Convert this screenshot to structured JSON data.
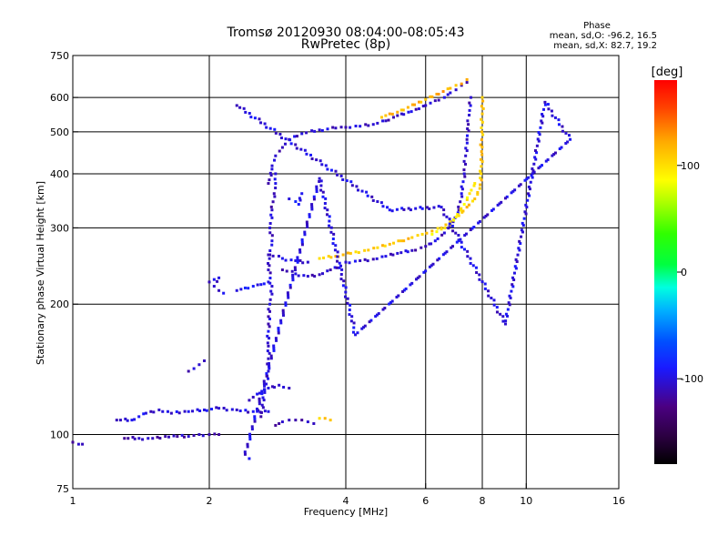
{
  "chart_data": {
    "type": "scatter",
    "title": "Tromsø 20120930 08:04:00-08:05:43",
    "subtitle": "RwPretec (8p)",
    "xlabel": "Frequency [MHz]",
    "ylabel": "Stationary phase Virtual Height [km]",
    "xscale": "log",
    "yscale": "log",
    "xlim": [
      1,
      16
    ],
    "ylim": [
      75,
      750
    ],
    "grid": true,
    "x_ticks": [
      "1",
      "2",
      "4",
      "6",
      "8",
      "10",
      "16"
    ],
    "x_tick_values": [
      1,
      2,
      4,
      6,
      8,
      10,
      16
    ],
    "y_ticks": [
      "75",
      "100",
      "200",
      "300",
      "400",
      "500",
      "600",
      "750"
    ],
    "y_tick_values": [
      75,
      100,
      200,
      300,
      400,
      500,
      600,
      750
    ],
    "grid_x": [
      2,
      4,
      6,
      8,
      10
    ],
    "grid_y": [
      100,
      200,
      300,
      400,
      500,
      600
    ],
    "phase_stats": {
      "title": "Phase",
      "line_o": "mean, sd,O: -96.2, 16.5",
      "line_x": "mean, sd,X: 82.7, 19.2"
    },
    "colorbar": {
      "label": "[deg]",
      "range": [
        -180,
        180
      ],
      "ticks": [
        "100",
        "0",
        "-100"
      ],
      "tick_values": [
        100,
        0,
        -100
      ]
    },
    "traces": [
      {
        "points": [
          [
            1.0,
            96
          ],
          [
            1.03,
            95
          ],
          [
            1.05,
            95
          ]
        ],
        "phase": -110
      },
      {
        "points": [
          [
            1.3,
            98
          ],
          [
            1.4,
            98
          ],
          [
            1.5,
            98
          ],
          [
            1.6,
            99
          ],
          [
            1.7,
            99
          ],
          [
            1.8,
            99
          ],
          [
            1.9,
            100
          ],
          [
            2.0,
            100
          ],
          [
            2.1,
            100
          ]
        ],
        "phase": -110
      },
      {
        "points": [
          [
            1.25,
            108
          ],
          [
            1.35,
            108
          ],
          [
            1.45,
            112
          ],
          [
            1.55,
            114
          ],
          [
            1.65,
            112
          ],
          [
            1.8,
            113
          ],
          [
            1.95,
            114
          ],
          [
            2.1,
            115
          ],
          [
            2.3,
            114
          ],
          [
            2.5,
            113
          ],
          [
            2.7,
            113
          ]
        ],
        "phase": -100
      },
      {
        "points": [
          [
            1.8,
            140
          ],
          [
            1.85,
            142
          ],
          [
            1.9,
            145
          ],
          [
            1.95,
            148
          ]
        ],
        "phase": -105
      },
      {
        "points": [
          [
            2.0,
            225
          ],
          [
            2.05,
            228
          ],
          [
            2.1,
            230
          ],
          [
            2.05,
            220
          ],
          [
            2.1,
            215
          ],
          [
            2.15,
            212
          ]
        ],
        "phase": -100
      },
      {
        "points": [
          [
            2.3,
            215
          ],
          [
            2.4,
            218
          ],
          [
            2.5,
            220
          ],
          [
            2.6,
            222
          ],
          [
            2.7,
            225
          ]
        ],
        "phase": -90
      },
      {
        "points": [
          [
            2.6,
            110
          ],
          [
            2.65,
            125
          ],
          [
            2.7,
            140
          ],
          [
            2.7,
            160
          ],
          [
            2.7,
            180
          ],
          [
            2.72,
            200
          ],
          [
            2.75,
            220
          ],
          [
            2.7,
            240
          ],
          [
            2.72,
            260
          ],
          [
            2.75,
            280
          ],
          [
            2.72,
            300
          ],
          [
            2.75,
            330
          ],
          [
            2.78,
            360
          ],
          [
            2.8,
            380
          ],
          [
            2.8,
            400
          ]
        ],
        "phase": -105
      },
      {
        "points": [
          [
            2.45,
            120
          ],
          [
            2.55,
            124
          ],
          [
            2.7,
            128
          ],
          [
            2.85,
            130
          ],
          [
            3.0,
            128
          ]
        ],
        "phase": -100
      },
      {
        "points": [
          [
            2.8,
            105
          ],
          [
            2.9,
            107
          ],
          [
            3.0,
            108
          ],
          [
            3.1,
            108
          ],
          [
            3.2,
            108
          ],
          [
            3.3,
            107
          ],
          [
            3.4,
            106
          ]
        ],
        "phase": -110
      },
      {
        "points": [
          [
            3.5,
            109
          ],
          [
            3.6,
            109
          ],
          [
            3.7,
            108
          ]
        ],
        "phase": 110
      },
      {
        "points": [
          [
            2.7,
            260
          ],
          [
            2.9,
            255
          ],
          [
            3.1,
            252
          ],
          [
            3.3,
            250
          ]
        ],
        "phase": -100
      },
      {
        "points": [
          [
            3.0,
            350
          ],
          [
            3.1,
            345
          ],
          [
            3.15,
            340
          ],
          [
            3.2,
            360
          ]
        ],
        "phase": -90
      },
      {
        "points": [
          [
            2.9,
            240
          ],
          [
            3.1,
            235
          ],
          [
            3.3,
            232
          ],
          [
            3.5,
            234
          ],
          [
            3.7,
            240
          ],
          [
            3.9,
            245
          ],
          [
            4.0,
            250
          ],
          [
            4.3,
            252
          ],
          [
            4.6,
            254
          ],
          [
            4.9,
            258
          ],
          [
            5.2,
            262
          ],
          [
            5.6,
            266
          ],
          [
            6.0,
            272
          ],
          [
            6.3,
            280
          ],
          [
            6.6,
            292
          ],
          [
            6.9,
            310
          ],
          [
            7.1,
            330
          ],
          [
            7.2,
            360
          ],
          [
            7.3,
            400
          ],
          [
            7.35,
            440
          ],
          [
            7.4,
            480
          ],
          [
            7.45,
            520
          ],
          [
            7.5,
            560
          ],
          [
            7.55,
            600
          ]
        ],
        "phase": -105
      },
      {
        "points": [
          [
            3.5,
            255
          ],
          [
            3.8,
            258
          ],
          [
            4.1,
            262
          ],
          [
            4.4,
            266
          ],
          [
            4.7,
            270
          ],
          [
            5.0,
            275
          ],
          [
            5.3,
            280
          ],
          [
            5.6,
            285
          ],
          [
            5.9,
            290
          ],
          [
            6.2,
            295
          ],
          [
            6.5,
            300
          ],
          [
            6.8,
            310
          ],
          [
            7.1,
            320
          ],
          [
            7.4,
            335
          ],
          [
            7.7,
            350
          ],
          [
            7.9,
            370
          ],
          [
            7.95,
            400
          ],
          [
            7.97,
            450
          ],
          [
            7.98,
            500
          ],
          [
            8.0,
            550
          ],
          [
            8.0,
            600
          ]
        ],
        "phase": 110
      },
      {
        "points": [
          [
            6.2,
            290
          ],
          [
            6.5,
            298
          ],
          [
            6.8,
            305
          ],
          [
            7.0,
            318
          ],
          [
            7.3,
            340
          ],
          [
            7.5,
            360
          ],
          [
            7.7,
            380
          ]
        ],
        "phase": 95
      },
      {
        "points": [
          [
            2.7,
            380
          ],
          [
            2.75,
            410
          ],
          [
            2.8,
            440
          ],
          [
            2.9,
            460
          ],
          [
            3.0,
            480
          ],
          [
            3.2,
            495
          ],
          [
            3.5,
            505
          ],
          [
            3.8,
            510
          ],
          [
            4.0,
            512
          ],
          [
            4.3,
            515
          ],
          [
            4.6,
            520
          ],
          [
            4.9,
            530
          ],
          [
            5.2,
            545
          ],
          [
            5.5,
            555
          ],
          [
            5.8,
            565
          ],
          [
            6.0,
            575
          ],
          [
            6.3,
            590
          ],
          [
            6.6,
            600
          ],
          [
            6.8,
            615
          ],
          [
            7.0,
            625
          ],
          [
            7.2,
            640
          ],
          [
            7.4,
            650
          ]
        ],
        "phase": -105
      },
      {
        "points": [
          [
            4.8,
            540
          ],
          [
            5.0,
            550
          ],
          [
            5.2,
            555
          ],
          [
            6.8,
            630
          ],
          [
            7.0,
            640
          ],
          [
            7.2,
            645
          ],
          [
            7.4,
            660
          ]
        ],
        "phase": 120
      },
      {
        "points": [
          [
            2.3,
            575
          ],
          [
            5.0,
            330
          ],
          [
            6.5,
            335
          ],
          [
            9.0,
            180
          ],
          [
            11.0,
            585
          ],
          [
            12.5,
            480
          ],
          [
            4.2,
            170
          ],
          [
            3.5,
            390
          ],
          [
            2.4,
            90
          ],
          [
            2.45,
            88
          ]
        ],
        "phase": -100
      }
    ]
  }
}
